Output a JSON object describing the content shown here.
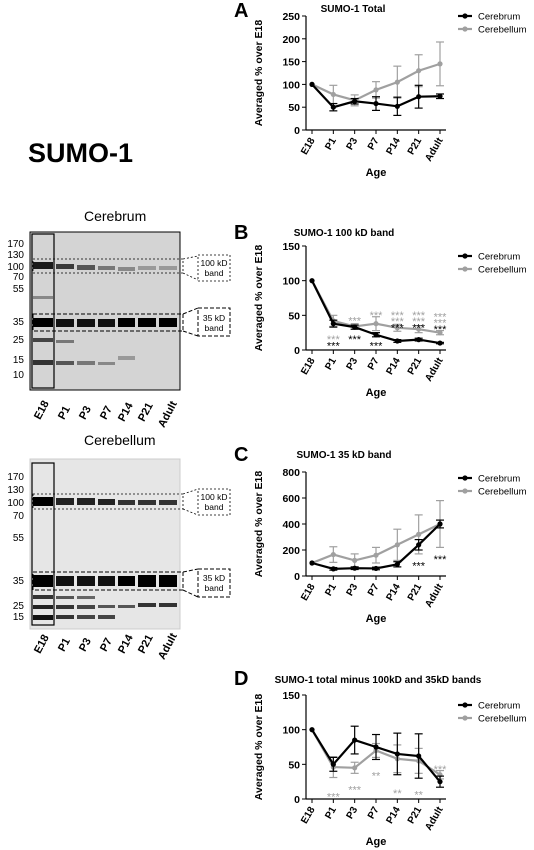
{
  "figure": {
    "protein_title": "SUMO-1",
    "blots": [
      {
        "title": "Cerebrum",
        "mw_markers": [
          "170",
          "130",
          "100",
          "70",
          "55",
          "35",
          "25",
          "15",
          "10"
        ],
        "lanes": [
          "E18",
          "P1",
          "P3",
          "P7",
          "P14",
          "P21",
          "Adult"
        ],
        "band_boxes": [
          "100 kD\nband",
          "35 kD\nband"
        ]
      },
      {
        "title": "Cerebellum",
        "mw_markers": [
          "170",
          "130",
          "100",
          "70",
          "55",
          "35",
          "25",
          "15"
        ],
        "lanes": [
          "E18",
          "P1",
          "P3",
          "P7",
          "P14",
          "P21",
          "Adult"
        ],
        "band_boxes": [
          "100 kD\nband",
          "35 kD\nband"
        ]
      }
    ]
  },
  "chart_data": [
    {
      "panel": "A",
      "type": "line",
      "title": "SUMO-1 Total",
      "xlabel": "Age",
      "ylabel": "Averaged % over E18",
      "categories": [
        "E18",
        "P1",
        "P3",
        "P7",
        "P14",
        "P21",
        "Adult"
      ],
      "ylim": [
        0,
        250
      ],
      "yticks": [
        0,
        50,
        100,
        150,
        200,
        250
      ],
      "legend_position": "top-right",
      "series": [
        {
          "name": "Cerebrum",
          "color": "#000000",
          "values": [
            100,
            50,
            63,
            58,
            52,
            73,
            74
          ],
          "errors": [
            0,
            8,
            6,
            15,
            20,
            25,
            5
          ]
        },
        {
          "name": "Cerebellum",
          "color": "#a0a0a0",
          "values": [
            100,
            78,
            65,
            88,
            105,
            130,
            145
          ],
          "errors": [
            0,
            20,
            12,
            18,
            35,
            35,
            48
          ]
        }
      ],
      "annotations": []
    },
    {
      "panel": "B",
      "type": "line",
      "title": "SUMO-1 100 kD band",
      "xlabel": "Age",
      "ylabel": "Averaged % over E18",
      "categories": [
        "E18",
        "P1",
        "P3",
        "P7",
        "P14",
        "P21",
        "Adult"
      ],
      "ylim": [
        0,
        150
      ],
      "yticks": [
        0,
        50,
        100,
        150
      ],
      "legend_position": "top-right",
      "series": [
        {
          "name": "Cerebrum",
          "color": "#000000",
          "values": [
            100,
            38,
            33,
            22,
            13,
            15,
            10
          ],
          "errors": [
            0,
            5,
            3,
            3,
            2,
            2,
            1
          ]
        },
        {
          "name": "Cerebellum",
          "color": "#a0a0a0",
          "values": [
            100,
            42,
            34,
            38,
            32,
            30,
            25
          ],
          "errors": [
            0,
            8,
            4,
            10,
            5,
            5,
            3
          ]
        }
      ],
      "annotations": [
        {
          "text": "***",
          "x": "P1",
          "y": 17,
          "color": "#a0a0a0"
        },
        {
          "text": "***",
          "x": "P1",
          "y": 8,
          "color": "#000000"
        },
        {
          "text": "***",
          "x": "P3",
          "y": 44,
          "color": "#a0a0a0"
        },
        {
          "text": "***",
          "x": "P3",
          "y": 17,
          "color": "#000000"
        },
        {
          "text": "***",
          "x": "P7",
          "y": 52,
          "color": "#a0a0a0"
        },
        {
          "text": "***",
          "x": "P7",
          "y": 8,
          "color": "#000000"
        },
        {
          "text": "***",
          "x": "P14",
          "y": 52,
          "color": "#a0a0a0"
        },
        {
          "text": "***",
          "x": "P14",
          "y": 43,
          "color": "#a0a0a0"
        },
        {
          "text": "***",
          "x": "P14",
          "y": 34,
          "color": "#000000"
        },
        {
          "text": "***",
          "x": "P21",
          "y": 52,
          "color": "#a0a0a0"
        },
        {
          "text": "***",
          "x": "P21",
          "y": 43,
          "color": "#a0a0a0"
        },
        {
          "text": "***",
          "x": "P21",
          "y": 34,
          "color": "#000000"
        },
        {
          "text": "***",
          "x": "Adult",
          "y": 50,
          "color": "#a0a0a0"
        },
        {
          "text": "***",
          "x": "Adult",
          "y": 41,
          "color": "#a0a0a0"
        },
        {
          "text": "***",
          "x": "Adult",
          "y": 32,
          "color": "#000000"
        }
      ]
    },
    {
      "panel": "C",
      "type": "line",
      "title": "SUMO-1 35 kD band",
      "xlabel": "Age",
      "ylabel": "Averaged % over E18",
      "categories": [
        "E18",
        "P1",
        "P3",
        "P7",
        "P14",
        "P21",
        "Adult"
      ],
      "ylim": [
        0,
        800
      ],
      "yticks": [
        0,
        200,
        400,
        600,
        800
      ],
      "legend_position": "top-right",
      "series": [
        {
          "name": "Cerebrum",
          "color": "#000000",
          "values": [
            100,
            55,
            60,
            58,
            90,
            240,
            400
          ],
          "errors": [
            0,
            10,
            10,
            10,
            20,
            40,
            30
          ]
        },
        {
          "name": "Cerebellum",
          "color": "#a0a0a0",
          "values": [
            100,
            165,
            120,
            160,
            240,
            320,
            400
          ],
          "errors": [
            0,
            60,
            50,
            60,
            120,
            150,
            180
          ]
        }
      ],
      "annotations": [
        {
          "text": "***",
          "x": "P21",
          "y": 90,
          "color": "#000000"
        },
        {
          "text": "***",
          "x": "Adult",
          "y": 140,
          "color": "#000000"
        }
      ]
    },
    {
      "panel": "D",
      "type": "line",
      "title": "SUMO-1 total minus 100kD and 35kD bands",
      "xlabel": "Age",
      "ylabel": "Averaged % over E18",
      "categories": [
        "E18",
        "P1",
        "P3",
        "P7",
        "P14",
        "P21",
        "Adult"
      ],
      "ylim": [
        0,
        150
      ],
      "yticks": [
        0,
        50,
        100,
        150
      ],
      "legend_position": "top-right",
      "series": [
        {
          "name": "Cerebrum",
          "color": "#000000",
          "values": [
            100,
            50,
            85,
            75,
            65,
            62,
            25
          ],
          "errors": [
            0,
            10,
            20,
            18,
            30,
            32,
            8
          ]
        },
        {
          "name": "Cerebellum",
          "color": "#a0a0a0",
          "values": [
            100,
            46,
            45,
            70,
            58,
            55,
            35
          ],
          "errors": [
            0,
            15,
            8,
            10,
            20,
            18,
            6
          ]
        }
      ],
      "annotations": [
        {
          "text": "***",
          "x": "P1",
          "y": 5,
          "color": "#a0a0a0"
        },
        {
          "text": "***",
          "x": "P3",
          "y": 15,
          "color": "#a0a0a0"
        },
        {
          "text": "**",
          "x": "P7",
          "y": 35,
          "color": "#a0a0a0"
        },
        {
          "text": "**",
          "x": "P14",
          "y": 10,
          "color": "#a0a0a0"
        },
        {
          "text": "**",
          "x": "P21",
          "y": 8,
          "color": "#a0a0a0"
        },
        {
          "text": "***",
          "x": "Adult",
          "y": 45,
          "color": "#a0a0a0"
        }
      ]
    }
  ]
}
